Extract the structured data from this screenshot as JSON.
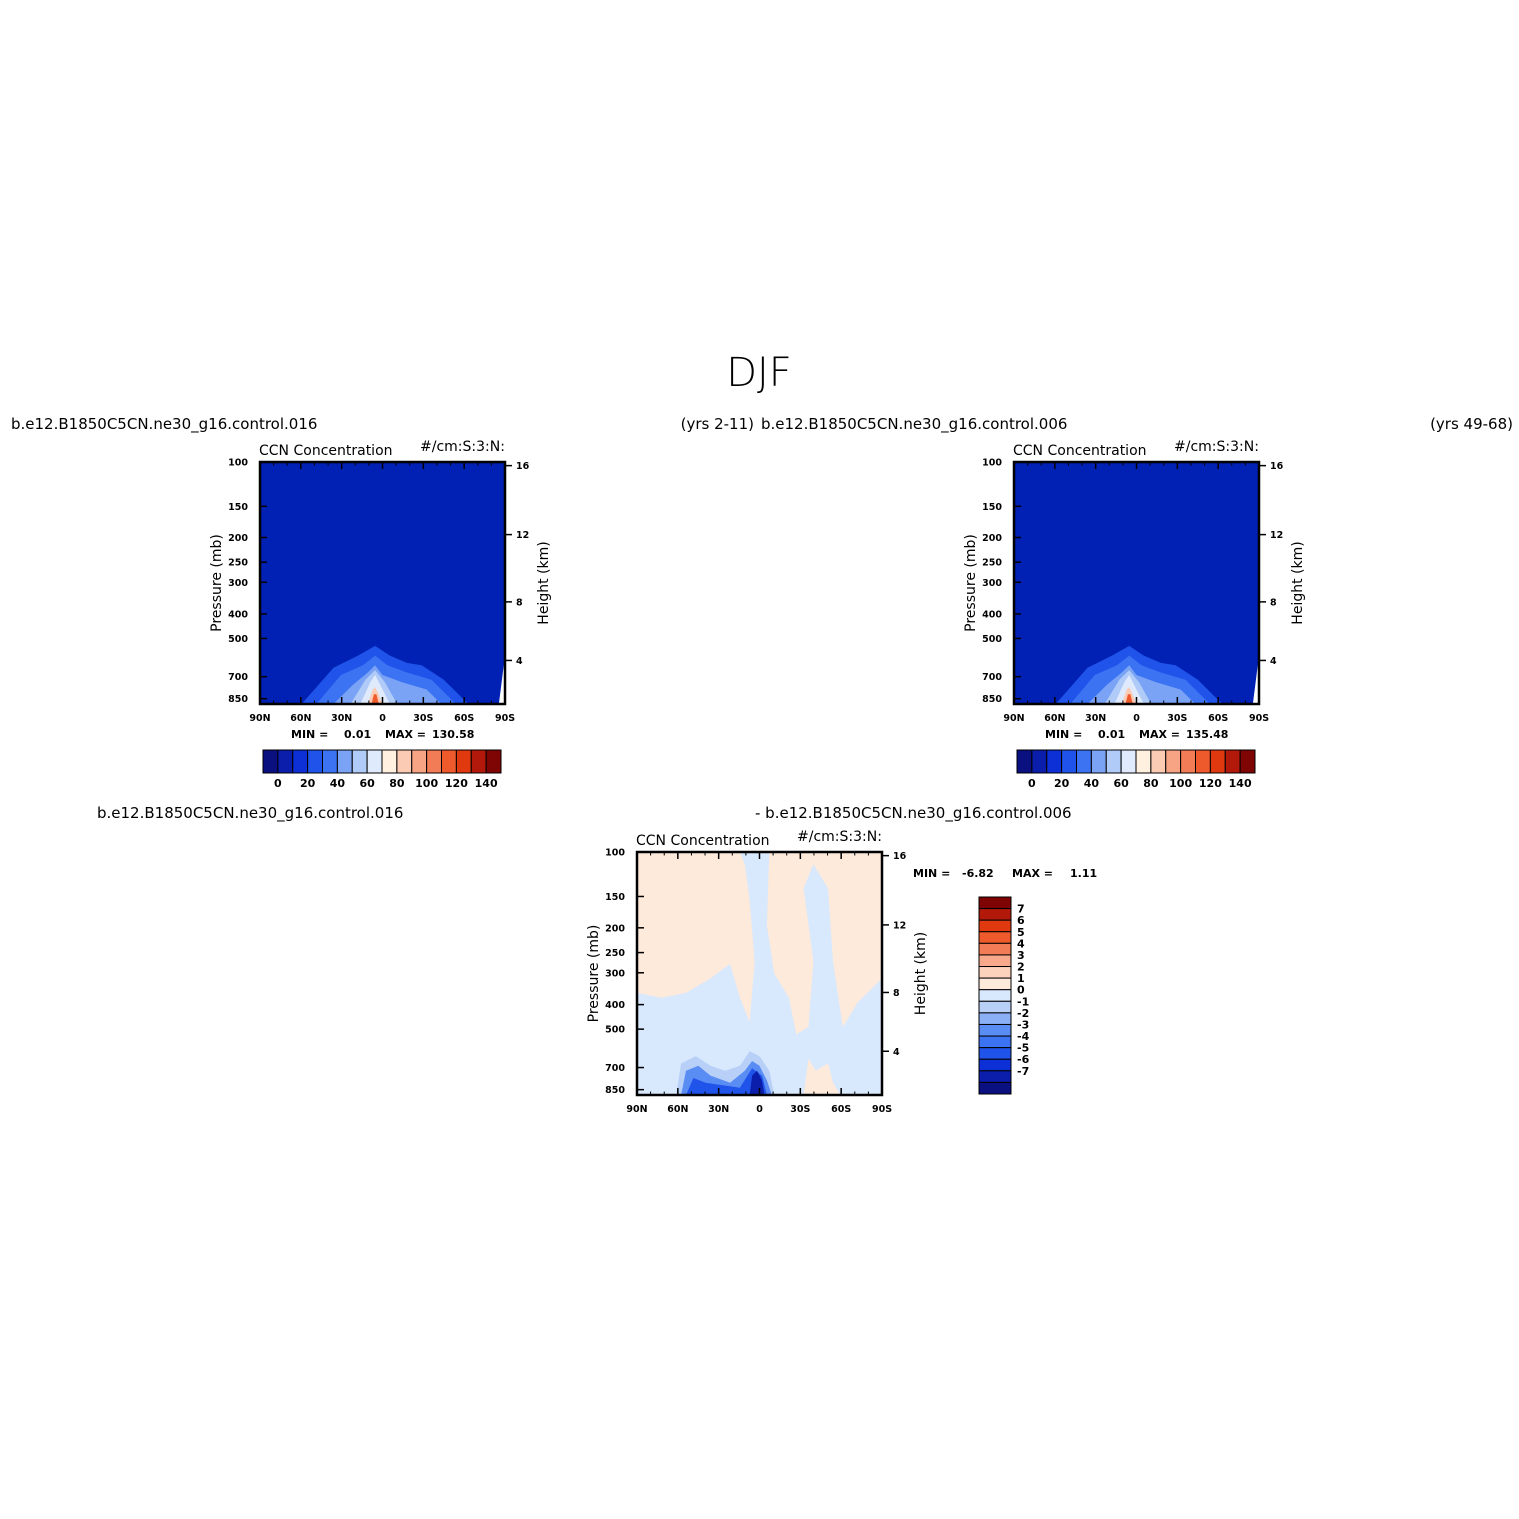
{
  "figure": {
    "title": "DJF",
    "header": {
      "left_case": "b.e12.B1850C5CN.ne30_g16.control.016",
      "left_years": "(yrs 2-11)",
      "right_case": "b.e12.B1850C5CN.ne30_g16.control.006",
      "right_years": "(yrs 49-68)",
      "diff_left": "b.e12.B1850C5CN.ne30_g16.control.016",
      "diff_right": "- b.e12.B1850C5CN.ne30_g16.control.006"
    }
  },
  "colors": {
    "base_blue": "#0021b3",
    "base_palette": [
      "#0a1080",
      "#0b1dab",
      "#0d2fd6",
      "#1f53ea",
      "#3b73f2",
      "#7aa3f5",
      "#b0cbf7",
      "#dfeafc",
      "#fff0e0",
      "#fbcbb3",
      "#f7a485",
      "#f27c55",
      "#ef5a2c",
      "#e0390f",
      "#b3190a",
      "#7f0505"
    ],
    "diff_palette": [
      "#0a1080",
      "#0b1dab",
      "#0d2fd6",
      "#1f53ea",
      "#3b73f2",
      "#5a8df4",
      "#8cb0f6",
      "#b8d0f8",
      "#d8e8fd",
      "#fdeadb",
      "#fcd2bd",
      "#f8a98c",
      "#f27c55",
      "#ef5a2c",
      "#e0390f",
      "#b3190a",
      "#7f0505"
    ]
  },
  "chart_data": [
    {
      "type": "heatmap",
      "id": "control-016",
      "title": "CCN Concentration",
      "units": "#/cm:S:3:N:",
      "xlabel": "",
      "ylabel": "Pressure (mb)",
      "ylabel_right": "Height (km)",
      "x_ticks": [
        "90N",
        "60N",
        "30N",
        "0",
        "30S",
        "60S",
        "90S"
      ],
      "y_ticks": [
        "100",
        "150",
        "200",
        "250",
        "300",
        "400",
        "500",
        "700",
        "850"
      ],
      "y_ticks_right": [
        "16",
        "12",
        "8",
        "4"
      ],
      "min_label": "MIN =",
      "min_value": "0.01",
      "max_label": "MAX =",
      "max_value": "130.58",
      "colorbar_labels": [
        "0",
        "20",
        "40",
        "60",
        "80",
        "100",
        "120",
        "140"
      ]
    },
    {
      "type": "heatmap",
      "id": "control-006",
      "title": "CCN Concentration",
      "units": "#/cm:S:3:N:",
      "xlabel": "",
      "ylabel": "Pressure (mb)",
      "ylabel_right": "Height (km)",
      "x_ticks": [
        "90N",
        "60N",
        "30N",
        "0",
        "30S",
        "60S",
        "90S"
      ],
      "y_ticks": [
        "100",
        "150",
        "200",
        "250",
        "300",
        "400",
        "500",
        "700",
        "850"
      ],
      "y_ticks_right": [
        "16",
        "12",
        "8",
        "4"
      ],
      "min_label": "MIN =",
      "min_value": "0.01",
      "max_label": "MAX =",
      "max_value": "135.48",
      "colorbar_labels": [
        "0",
        "20",
        "40",
        "60",
        "80",
        "100",
        "120",
        "140"
      ]
    },
    {
      "type": "heatmap",
      "id": "difference",
      "title": "CCN Concentration",
      "units": "#/cm:S:3:N:",
      "xlabel": "",
      "ylabel": "Pressure (mb)",
      "ylabel_right": "Height (km)",
      "x_ticks": [
        "90N",
        "60N",
        "30N",
        "0",
        "30S",
        "60S",
        "90S"
      ],
      "y_ticks": [
        "100",
        "150",
        "200",
        "250",
        "300",
        "400",
        "500",
        "700",
        "850"
      ],
      "y_ticks_right": [
        "16",
        "12",
        "8",
        "4"
      ],
      "min_label": "MIN =",
      "min_value": "-6.82",
      "max_label": "MAX =",
      "max_value": "1.11",
      "colorbar_labels": [
        "7",
        "6",
        "5",
        "4",
        "3",
        "2",
        "1",
        "0",
        "-1",
        "-2",
        "-3",
        "-4",
        "-5",
        "-6",
        "-7"
      ]
    }
  ]
}
